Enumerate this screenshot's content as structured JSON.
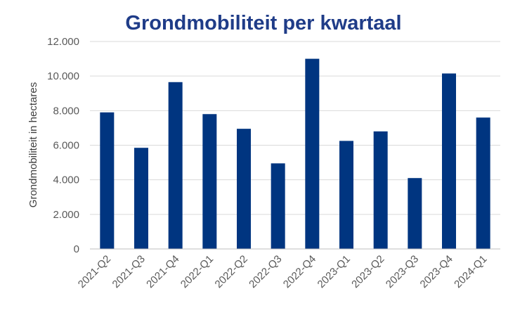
{
  "chart_data": {
    "type": "bar",
    "title": "Grondmobiliteit per kwartaal",
    "xlabel": "",
    "ylabel": "Grondmobiliteit in hectares",
    "categories": [
      "2021-Q2",
      "2021-Q3",
      "2021-Q4",
      "2022-Q1",
      "2022-Q2",
      "2022-Q3",
      "2022-Q4",
      "2023-Q1",
      "2023-Q2",
      "2023-Q3",
      "2023-Q4",
      "2024-Q1"
    ],
    "values": [
      7900,
      5850,
      9650,
      7800,
      6950,
      4950,
      11000,
      6250,
      6800,
      4100,
      10150,
      7600
    ],
    "ylim": [
      0,
      12000
    ],
    "yticks": [
      0,
      2000,
      4000,
      6000,
      8000,
      10000,
      12000
    ],
    "ytick_labels": [
      "0",
      "2.000",
      "4.000",
      "6.000",
      "8.000",
      "10.000",
      "12.000"
    ],
    "grid": true,
    "colors": {
      "bar": "#003580",
      "title": "#1f3c88",
      "grid": "#d9d9d9",
      "axis": "#bfbfbf"
    }
  }
}
